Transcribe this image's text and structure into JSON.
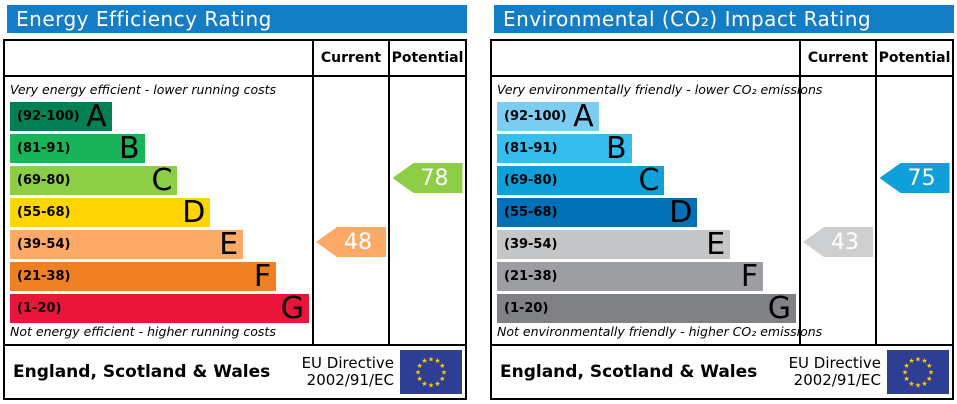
{
  "colors": {
    "titlebar_bg": "#137dc5",
    "flag_bg": "#2e3e92",
    "flag_star": "#ffcc00",
    "band_text": "#000000",
    "arrow_text": "#ffffff"
  },
  "panels": [
    {
      "title": "Energy Efficiency Rating",
      "columns": {
        "current": "Current",
        "potential": "Potential"
      },
      "caption_top": "Very energy efficient - lower running costs",
      "caption_bottom": "Not energy efficient - higher running costs",
      "bands": [
        {
          "range": "(92-100)",
          "letter": "A",
          "color": "#008054",
          "width_pct": 34
        },
        {
          "range": "(81-91)",
          "letter": "B",
          "color": "#19b459",
          "width_pct": 45
        },
        {
          "range": "(69-80)",
          "letter": "C",
          "color": "#8dce46",
          "width_pct": 56
        },
        {
          "range": "(55-68)",
          "letter": "D",
          "color": "#ffd500",
          "width_pct": 67
        },
        {
          "range": "(39-54)",
          "letter": "E",
          "color": "#fcaa65",
          "width_pct": 78
        },
        {
          "range": "(21-38)",
          "letter": "F",
          "color": "#ef8023",
          "width_pct": 89
        },
        {
          "range": "(1-20)",
          "letter": "G",
          "color": "#e9153b",
          "width_pct": 100
        }
      ],
      "current": {
        "value": "48",
        "color": "#fcaa65",
        "band_index": 4
      },
      "potential": {
        "value": "78",
        "color": "#8dce46",
        "band_index": 2
      },
      "footer": {
        "region": "England, Scotland & Wales",
        "directive_line1": "EU Directive",
        "directive_line2": "2002/91/EC"
      }
    },
    {
      "title": "Environmental (CO₂) Impact Rating",
      "columns": {
        "current": "Current",
        "potential": "Potential"
      },
      "caption_top": "Very environmentally friendly - lower CO₂ emissions",
      "caption_bottom": "Not environmentally friendly - higher CO₂ emissions",
      "bands": [
        {
          "range": "(92-100)",
          "letter": "A",
          "color": "#7dcdf2",
          "width_pct": 34
        },
        {
          "range": "(81-91)",
          "letter": "B",
          "color": "#35bdee",
          "width_pct": 45
        },
        {
          "range": "(69-80)",
          "letter": "C",
          "color": "#0f9fd9",
          "width_pct": 56
        },
        {
          "range": "(55-68)",
          "letter": "D",
          "color": "#0270b7",
          "width_pct": 67
        },
        {
          "range": "(39-54)",
          "letter": "E",
          "color": "#c5c6c8",
          "width_pct": 78
        },
        {
          "range": "(21-38)",
          "letter": "F",
          "color": "#9c9ea1",
          "width_pct": 89
        },
        {
          "range": "(1-20)",
          "letter": "G",
          "color": "#808185",
          "width_pct": 100
        }
      ],
      "current": {
        "value": "43",
        "color": "#cdced0",
        "band_index": 4
      },
      "potential": {
        "value": "75",
        "color": "#0f9fd9",
        "band_index": 2
      },
      "footer": {
        "region": "England, Scotland & Wales",
        "directive_line1": "EU Directive",
        "directive_line2": "2002/91/EC"
      }
    }
  ],
  "chart_data": [
    {
      "type": "bar",
      "title": "Energy Efficiency Rating",
      "categories": [
        "A (92-100)",
        "B (81-91)",
        "C (69-80)",
        "D (55-68)",
        "E (39-54)",
        "F (21-38)",
        "G (1-20)"
      ],
      "band_bar_widths_pct": [
        34,
        45,
        56,
        67,
        78,
        89,
        100
      ],
      "current": 48,
      "current_band": "E",
      "potential": 78,
      "potential_band": "C",
      "scale": [
        1,
        100
      ],
      "legend_position": "none",
      "annotations": [
        "Very energy efficient - lower running costs",
        "Not energy efficient - higher running costs",
        "England, Scotland & Wales",
        "EU Directive 2002/91/EC"
      ]
    },
    {
      "type": "bar",
      "title": "Environmental (CO₂) Impact Rating",
      "categories": [
        "A (92-100)",
        "B (81-91)",
        "C (69-80)",
        "D (55-68)",
        "E (39-54)",
        "F (21-38)",
        "G (1-20)"
      ],
      "band_bar_widths_pct": [
        34,
        45,
        56,
        67,
        78,
        89,
        100
      ],
      "current": 43,
      "current_band": "E",
      "potential": 75,
      "potential_band": "C",
      "scale": [
        1,
        100
      ],
      "legend_position": "none",
      "annotations": [
        "Very environmentally friendly - lower CO₂ emissions",
        "Not environmentally friendly - higher CO₂ emissions",
        "England, Scotland & Wales",
        "EU Directive 2002/91/EC"
      ]
    }
  ]
}
